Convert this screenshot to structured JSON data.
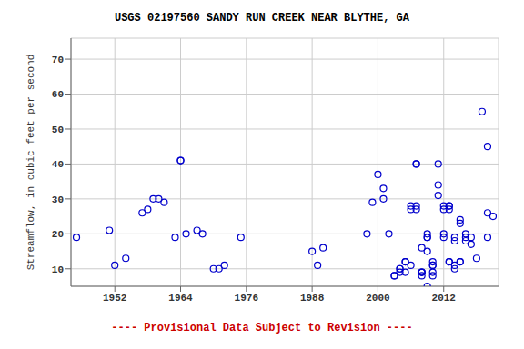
{
  "chart_data": {
    "type": "scatter",
    "title": "USGS 02197560 SANDY RUN CREEK NEAR BLYTHE, GA",
    "ylabel": "Streamflow, in cubic feet per second",
    "annotations": [
      {
        "text": "---- Provisional Data Subject to Revision ----",
        "color": "#cc0000"
      }
    ],
    "color": "#0000cc",
    "marker": "open_circle",
    "grid": true,
    "xlim": [
      1944,
      2022
    ],
    "ylim": [
      5,
      76
    ],
    "xticks": [
      1952,
      1964,
      1976,
      1988,
      2000,
      2012
    ],
    "yticks": [
      10,
      20,
      30,
      40,
      50,
      60,
      70
    ],
    "x": [
      1945,
      1951,
      1952,
      1954,
      1957,
      1958,
      1959,
      1960,
      1961,
      1963,
      1964,
      1964,
      1965,
      1967,
      1968,
      1970,
      1971,
      1972,
      1975,
      1988,
      1989,
      1990,
      1998,
      1999,
      2000,
      2001,
      2001,
      2002,
      2003,
      2003,
      2004,
      2004,
      2004,
      2005,
      2005,
      2005,
      2006,
      2006,
      2006,
      2007,
      2007,
      2007,
      2007,
      2008,
      2008,
      2008,
      2008,
      2008,
      2009,
      2009,
      2009,
      2009,
      2009,
      2010,
      2010,
      2010,
      2010,
      2010,
      2011,
      2011,
      2011,
      2012,
      2012,
      2012,
      2012,
      2013,
      2013,
      2013,
      2013,
      2013,
      2014,
      2014,
      2014,
      2014,
      2015,
      2015,
      2015,
      2015,
      2016,
      2016,
      2016,
      2017,
      2017,
      2018,
      2019,
      2020,
      2020,
      2020,
      2021
    ],
    "values": [
      19,
      21,
      11,
      13,
      26,
      27,
      30,
      30,
      29,
      19,
      41,
      41,
      20,
      21,
      20,
      10,
      10,
      11,
      19,
      15,
      11,
      16,
      20,
      29,
      37,
      33,
      30,
      20,
      8,
      8,
      10,
      10,
      9,
      9,
      12,
      12,
      27,
      28,
      11,
      40,
      40,
      27,
      28,
      16,
      9,
      9,
      9,
      8,
      15,
      19,
      19,
      20,
      5,
      12,
      11,
      11,
      9,
      8,
      31,
      34,
      40,
      27,
      28,
      20,
      19,
      28,
      27,
      28,
      12,
      12,
      19,
      18,
      11,
      10,
      23,
      24,
      12,
      12,
      18,
      19,
      20,
      17,
      19,
      13,
      55,
      26,
      19,
      45,
      25
    ]
  }
}
